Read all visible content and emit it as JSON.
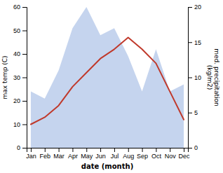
{
  "chart_data": {
    "type": "line",
    "categories": [
      "Jan",
      "Feb",
      "Mar",
      "Apr",
      "May",
      "Jun",
      "Jul",
      "Aug",
      "Sep",
      "Oct",
      "Nov",
      "Dec"
    ],
    "xlabel": "date (month)",
    "ylabel": "max temp (C)",
    "y2label": "med. precipitation\n(kg/m2)",
    "ylim": [
      0,
      60
    ],
    "yticks": [
      0,
      10,
      20,
      30,
      40,
      50,
      60
    ],
    "y2lim": [
      0,
      20
    ],
    "y2ticks": [
      0,
      5,
      10,
      15,
      20
    ],
    "series": [
      {
        "type": "area",
        "axis": "y2",
        "color": "#c5d4ee",
        "values": [
          8,
          7,
          11,
          17,
          20,
          16,
          17,
          13,
          8,
          14,
          8,
          9
        ]
      },
      {
        "type": "line",
        "color": "#c0392b",
        "values": [
          10,
          13,
          18,
          26,
          32,
          38,
          42,
          47,
          42,
          36,
          24,
          12
        ]
      }
    ]
  }
}
